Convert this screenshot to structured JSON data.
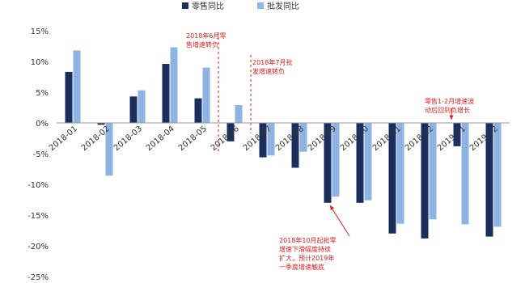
{
  "chart_data": {
    "type": "bar",
    "categories": [
      "2018-01",
      "2018-02",
      "2018-03",
      "2018-04",
      "2018-05",
      "2018-06",
      "2018-07",
      "2018-08",
      "2018-09",
      "2018-10",
      "2018-11",
      "2018-12",
      "2019-01",
      "2019-02"
    ],
    "series": [
      {
        "name": "零售同比",
        "color": "#1b2f5c",
        "values": [
          8.3,
          -0.3,
          4.3,
          9.6,
          4.0,
          -3.0,
          -5.6,
          -7.3,
          -13.0,
          -13.0,
          -18.0,
          -18.8,
          -3.8,
          -18.5
        ]
      },
      {
        "name": "批发同比",
        "color": "#8eb4e3",
        "values": [
          11.8,
          -8.6,
          5.3,
          12.3,
          9.0,
          2.9,
          -5.3,
          -4.7,
          -12.0,
          -12.6,
          -16.4,
          -15.7,
          -16.5,
          -16.9
        ]
      }
    ],
    "ylim": [
      -25,
      15
    ],
    "yticks": [
      -25,
      -20,
      -15,
      -10,
      -5,
      0,
      5,
      10,
      15
    ],
    "ytick_labels": [
      "-25%",
      "-20%",
      "-15%",
      "-10%",
      "-5%",
      "0%",
      "5%",
      "10%",
      "15%"
    ],
    "xtick_labels": [
      "2018-01",
      "2018-02",
      "2018-03",
      "2018-04",
      "2018-05",
      "2018-06",
      "2018-07",
      "2018-08",
      "2018-09",
      "2018-10",
      "2018-11",
      "2018-12",
      "2019-01",
      "2019-02"
    ],
    "legend_position": "top",
    "annotations": [
      {
        "lines": [
          "2018年6月零",
          "售增速转负"
        ],
        "color": "#e02020"
      },
      {
        "lines": [
          "2018年7月批",
          "发增速转负"
        ],
        "color": "#e02020"
      },
      {
        "lines": [
          "零售1-2月增速波",
          "动后回到负增长"
        ],
        "color": "#e02020"
      },
      {
        "lines": [
          "2018年10月起批零",
          "增速下滑幅度持续",
          "扩大，预计2019年",
          "一季度增速触底"
        ],
        "color": "#e02020"
      }
    ]
  }
}
